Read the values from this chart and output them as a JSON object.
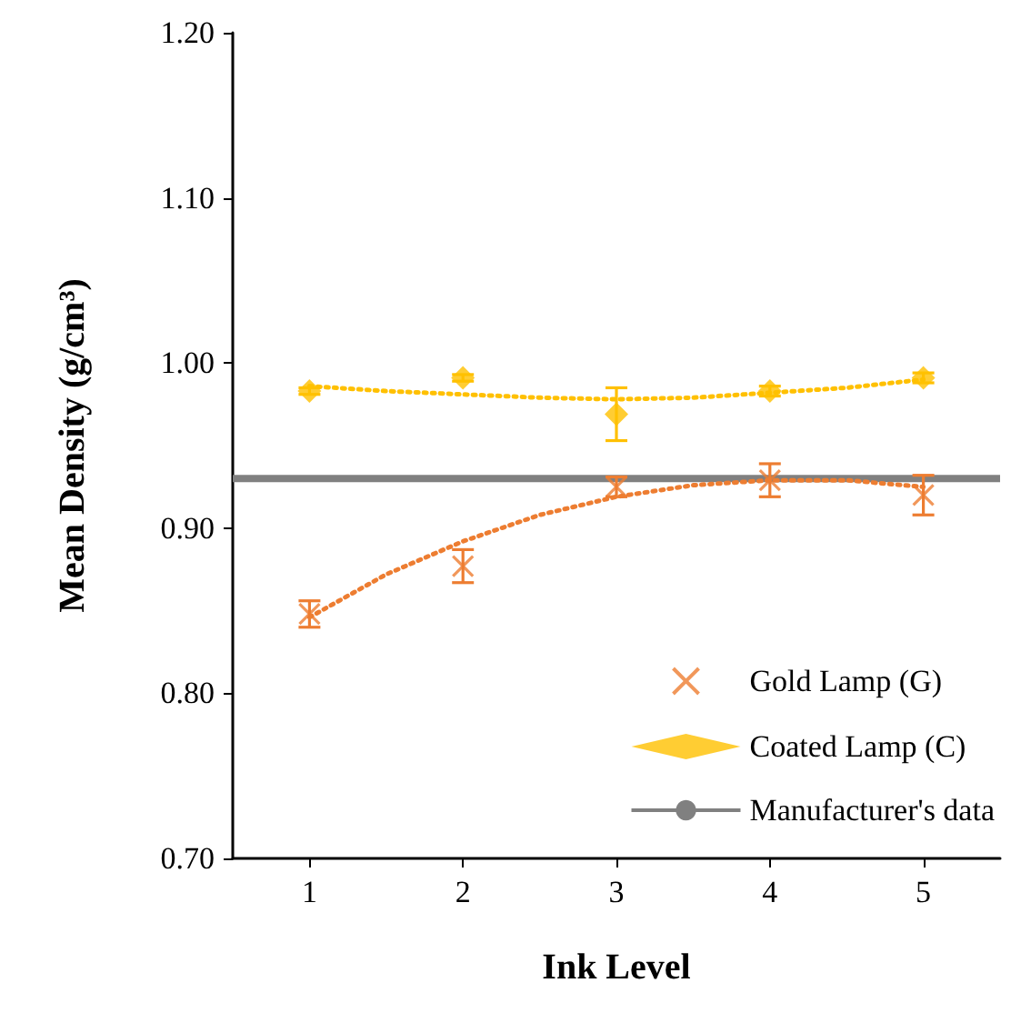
{
  "chart_data": {
    "type": "scatter",
    "xlabel": "Ink Level",
    "ylabel": "Mean Density (g/cm³)",
    "xlim": [
      0.5,
      5.5
    ],
    "xticks": [
      1,
      2,
      3,
      4,
      5
    ],
    "ylim": [
      0.7,
      1.2
    ],
    "yticks": [
      {
        "value": 0.7,
        "label": "0.70"
      },
      {
        "value": 0.8,
        "label": "0.80"
      },
      {
        "value": 0.9,
        "label": "0.90"
      },
      {
        "value": 1.0,
        "label": "1.00"
      },
      {
        "value": 1.1,
        "label": "1.10"
      },
      {
        "value": 1.2,
        "label": "1.20"
      }
    ],
    "grid": false,
    "legend": "bottom right",
    "series": [
      {
        "name": "Gold Lamp (G)",
        "color": "#ed7d31",
        "marker": "cross",
        "x": [
          1,
          2,
          3,
          4,
          5
        ],
        "values": [
          0.848,
          0.877,
          0.925,
          0.929,
          0.92
        ],
        "errors": [
          0.008,
          0.01,
          0.006,
          0.01,
          0.012
        ]
      },
      {
        "name": "Coated Lamp (C)",
        "color": "#ffc000",
        "marker": "diamond",
        "x": [
          1,
          2,
          3,
          4,
          5
        ],
        "values": [
          0.983,
          0.991,
          0.969,
          0.983,
          0.991
        ],
        "errors": [
          0.002,
          0.002,
          0.016,
          0.003,
          0.003
        ]
      },
      {
        "type": "line",
        "color": "#ed7d31",
        "marker": "none",
        "line_style": "dotted",
        "x": [
          1,
          1.5,
          2,
          2.5,
          3,
          3.5,
          4,
          4.5,
          5
        ],
        "values": [
          0.846,
          0.872,
          0.892,
          0.908,
          0.919,
          0.926,
          0.929,
          0.929,
          0.925
        ]
      },
      {
        "type": "line",
        "color": "#ffc000",
        "marker": "none",
        "line_style": "dotted",
        "x": [
          1,
          1.5,
          2,
          2.5,
          3,
          3.5,
          4,
          4.5,
          5
        ],
        "values": [
          0.986,
          0.983,
          0.981,
          0.979,
          0.978,
          0.979,
          0.982,
          0.985,
          0.99
        ]
      }
    ],
    "ref_lines": [
      {
        "axis": "y",
        "value": 0.93,
        "label": "Manufacturer's data",
        "color": "#808080"
      }
    ]
  }
}
